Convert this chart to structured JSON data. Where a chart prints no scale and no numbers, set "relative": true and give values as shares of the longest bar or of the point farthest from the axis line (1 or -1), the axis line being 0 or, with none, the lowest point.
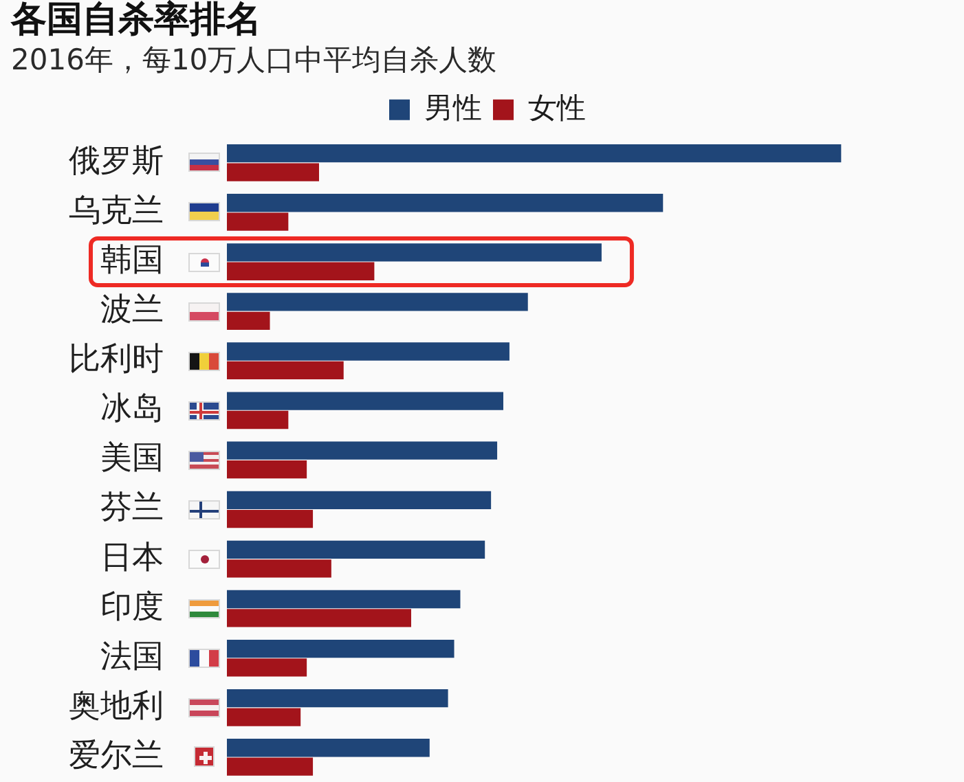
{
  "chart_data": {
    "type": "bar",
    "orientation": "horizontal",
    "relative": true,
    "title": "各国自杀率排名",
    "subtitle": "2016年，每10万人口中平均自杀人数",
    "categories": [
      "俄罗斯",
      "乌克兰",
      "韩国",
      "波兰",
      "比利时",
      "冰岛",
      "美国",
      "芬兰",
      "日本",
      "印度",
      "法国",
      "奥地利",
      "爱尔兰"
    ],
    "series": [
      {
        "name": "男性",
        "color": "#1f4578",
        "values": [
          1,
          0.71,
          0.61,
          0.49,
          0.46,
          0.45,
          0.44,
          0.43,
          0.42,
          0.38,
          0.37,
          0.36,
          0.33
        ]
      },
      {
        "name": "女性",
        "color": "#a3141b",
        "values": [
          0.15,
          0.1,
          0.24,
          0.07,
          0.19,
          0.1,
          0.13,
          0.14,
          0.17,
          0.3,
          0.13,
          0.12,
          0.14
        ]
      }
    ],
    "legend": "top"
  }
}
